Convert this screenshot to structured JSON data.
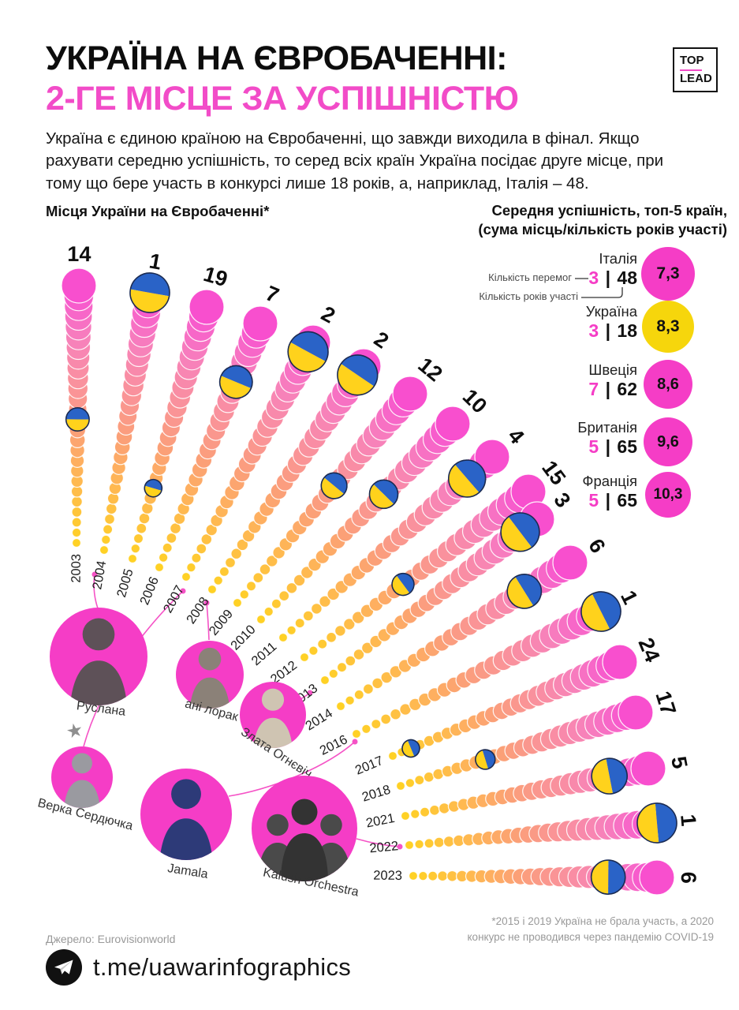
{
  "header": {
    "title_black": "УКРАЇНА НА ЄВРОБАЧЕННІ:",
    "title_pink": "2-ГЕ МІСЦЕ ЗА УСПІШНІСТЮ",
    "logo": {
      "top": "TOP",
      "lead": "LEAD"
    }
  },
  "intro": "Україна є єдиною країною на Євробаченні, що завжди виходила в фінал. Якщо рахувати середню успішність, то серед всіх країн Україна посідає друге місце, при тому що бере участь в конкурсі лише 18 років, а, наприклад, Італія – 48.",
  "fan_chart": {
    "title": "Місця України на Євробаченні*"
  },
  "top5": {
    "title_line1": "Середня успішність, топ-5 країн,",
    "title_line2": "(сума місць/кількість років участі)",
    "legend_wins": "Кількість перемог",
    "legend_years": "Кількість років участі",
    "separator": "|",
    "countries": [
      {
        "name": "Італія",
        "wins": "3",
        "years": "48",
        "avg": "7,3",
        "color": "#F53DC6"
      },
      {
        "name": "Україна",
        "wins": "3",
        "years": "18",
        "avg": "8,3",
        "color": "#F6D60C"
      },
      {
        "name": "Швеція",
        "wins": "7",
        "years": "62",
        "avg": "8,6",
        "color": "#F53DC6"
      },
      {
        "name": "Британія",
        "wins": "5",
        "years": "65",
        "avg": "9,6",
        "color": "#F53DC6"
      },
      {
        "name": "Франція",
        "wins": "5",
        "years": "65",
        "avg": "10,3",
        "color": "#F53DC6"
      }
    ]
  },
  "chart_data": [
    {
      "type": "scatter",
      "title": "Місця України на Євробаченні*",
      "x": [
        2003,
        2004,
        2005,
        2006,
        2007,
        2008,
        2009,
        2010,
        2011,
        2012,
        2013,
        2014,
        2016,
        2017,
        2018,
        2021,
        2022,
        2023
      ],
      "values": [
        14,
        1,
        19,
        7,
        2,
        2,
        12,
        10,
        4,
        15,
        3,
        6,
        1,
        24,
        17,
        5,
        1,
        6
      ]
    },
    {
      "type": "bar",
      "title": "Середня успішність, топ-5 країн (сума місць/кількість років участі)",
      "categories": [
        "Італія",
        "Україна",
        "Швеція",
        "Британія",
        "Франція"
      ],
      "series": [
        {
          "name": "середня успішність",
          "values": [
            7.3,
            8.3,
            8.6,
            9.6,
            10.3
          ]
        },
        {
          "name": "кількість перемог",
          "values": [
            3,
            3,
            7,
            5,
            5
          ]
        },
        {
          "name": "кількість років участі",
          "values": [
            48,
            18,
            62,
            65,
            65
          ]
        }
      ]
    }
  ],
  "artists": [
    {
      "name": "Руслана",
      "year": "2004"
    },
    {
      "name": "ані лорак",
      "year": "2008"
    },
    {
      "name": "Злата Огнєвіч",
      "year": "2013"
    },
    {
      "name": "Верка Сердючка",
      "year": "2007",
      "star": "★"
    },
    {
      "name": "Jamala",
      "year": "2016"
    },
    {
      "name": "Kalush Orchestra",
      "year": "2022"
    }
  ],
  "footer": {
    "source": "Джерело: Eurovisionworld",
    "note_line1": "*2015 і 2019 Україна не брала участь, а 2020",
    "note_line2": "конкурс не проводився через пандемію COVID-19",
    "telegram": "t.me/uawarinfographics"
  }
}
